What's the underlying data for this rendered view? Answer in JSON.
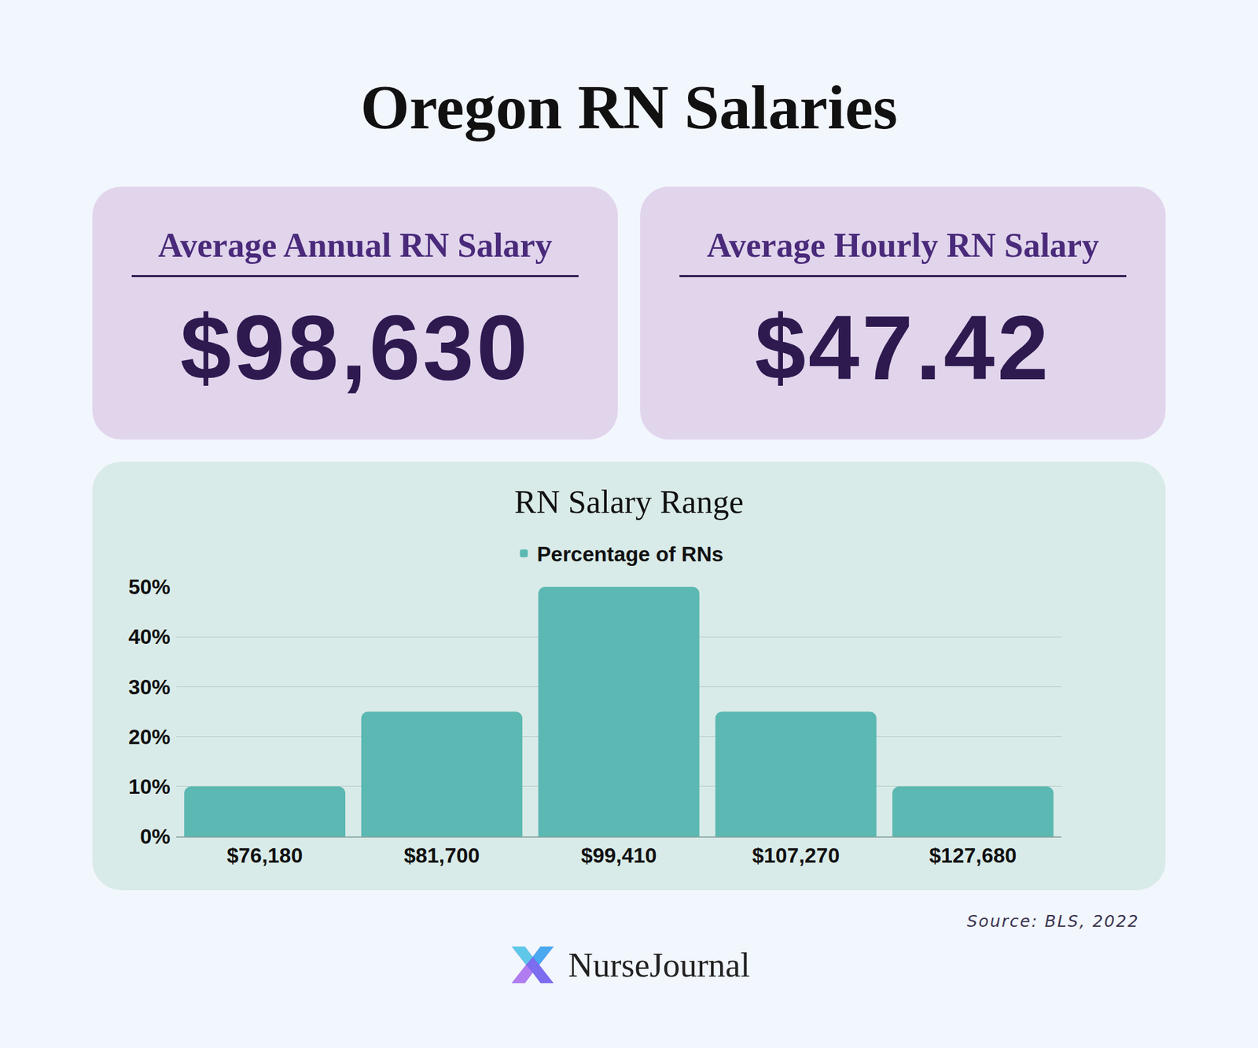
{
  "title": "Oregon RN Salaries",
  "cards": [
    {
      "label": "Average Annual RN Salary",
      "value": "$98,630"
    },
    {
      "label": "Average Hourly RN Salary",
      "value": "$47.42"
    }
  ],
  "chart_data": {
    "type": "bar",
    "title": "RN Salary Range",
    "categories": [
      "$76,180",
      "$81,700",
      "$99,410",
      "$107,270",
      "$127,680"
    ],
    "series": [
      {
        "name": "Percentage of RNs",
        "color": "#5bb8b2",
        "values": [
          10,
          25,
          50,
          25,
          10
        ]
      }
    ],
    "ylim": [
      0,
      50
    ],
    "yticks": [
      {
        "value": 0,
        "label": "0%"
      },
      {
        "value": 10,
        "label": "10%"
      },
      {
        "value": 20,
        "label": "20%"
      },
      {
        "value": 30,
        "label": "30%"
      },
      {
        "value": 40,
        "label": "40%"
      },
      {
        "value": 50,
        "label": "50%"
      }
    ],
    "grid": true,
    "legend": "top"
  },
  "source": "Source: BLS, 2022",
  "brand": "NurseJournal"
}
